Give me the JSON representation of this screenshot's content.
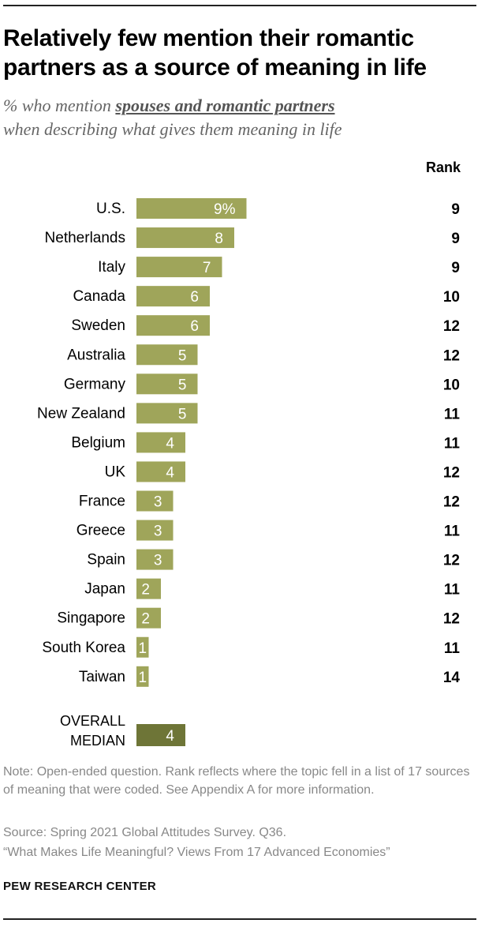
{
  "title": "Relatively few mention their romantic partners as a source of meaning in life",
  "subtitle": {
    "prefix": "% who mention ",
    "highlight": "spouses and romantic partners",
    "line2": "when describing what gives them meaning in life"
  },
  "rank_header": "Rank",
  "chart_data": {
    "type": "bar",
    "orientation": "horizontal",
    "unit": "%",
    "xlim": [
      0,
      9
    ],
    "grid": false,
    "categories": [
      "U.S.",
      "Netherlands",
      "Italy",
      "Canada",
      "Sweden",
      "Australia",
      "Germany",
      "New Zealand",
      "Belgium",
      "UK",
      "France",
      "Greece",
      "Spain",
      "Japan",
      "Singapore",
      "South Korea",
      "Taiwan"
    ],
    "values": [
      9,
      8,
      7,
      6,
      6,
      5,
      5,
      5,
      4,
      4,
      3,
      3,
      3,
      2,
      2,
      1,
      1
    ],
    "data_labels": [
      "9%",
      "8",
      "7",
      "6",
      "6",
      "5",
      "5",
      "5",
      "4",
      "4",
      "3",
      "3",
      "3",
      "2",
      "2",
      "1",
      "1"
    ],
    "ranks": [
      "9",
      "9",
      "9",
      "10",
      "12",
      "12",
      "10",
      "11",
      "11",
      "12",
      "12",
      "11",
      "12",
      "11",
      "12",
      "11",
      "14"
    ],
    "median": {
      "label_line1": "OVERALL",
      "label_line2": "MEDIAN",
      "value": 4,
      "data_label": "4"
    },
    "colors": {
      "bar": "#9fa55a",
      "median_bar": "#6e7537",
      "bar_label": "#ffffff"
    }
  },
  "notes": {
    "note": "Note: Open-ended question. Rank reflects where the topic fell in a list of 17 sources of meaning that were coded. See Appendix A for more information.",
    "source": "Source: Spring 2021 Global Attitudes Survey. Q36.",
    "report": "“What Makes Life Meaningful? Views From 17 Advanced Economies”"
  },
  "brand": "PEW RESEARCH CENTER"
}
